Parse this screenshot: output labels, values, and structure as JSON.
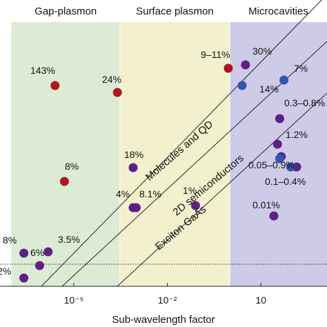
{
  "chart_data": {
    "type": "scatter",
    "xlabel": "Sub-wavelength factor",
    "x_scale": "log",
    "x_ticks": [
      {
        "value": 1e-05,
        "label": "10⁻⁵"
      },
      {
        "value": 0.01,
        "label": "10⁻²"
      },
      {
        "value": 10,
        "label": "10"
      }
    ],
    "regions": [
      {
        "name": "Gap-plasmon",
        "color": "#dcebd3",
        "x_range": [
          1e-07,
          0.0003
        ]
      },
      {
        "name": "Surface plasmon",
        "color": "#f3f1cd",
        "x_range": [
          0.0003,
          1
        ]
      },
      {
        "name": "Microcavities",
        "color": "#cdcbe8",
        "x_range": [
          1,
          2000
        ]
      }
    ],
    "reference_lines": [
      {
        "name": "Molecules and QD"
      },
      {
        "name": "2D semiconductors"
      },
      {
        "name": "Exciton GaAs"
      }
    ],
    "colors": {
      "red": "#b0161b",
      "purple": "#5e1f86",
      "blue": "#2f56b0"
    },
    "points": [
      {
        "x": 2.5e-06,
        "label": "143%",
        "color": "red"
      },
      {
        "x": 0.00025,
        "label": "24%",
        "color": "red"
      },
      {
        "x": 5e-06,
        "label": "8%",
        "color": "red"
      },
      {
        "x": 0.9,
        "label": "9–11%",
        "color": "red"
      },
      {
        "x": 0.0008,
        "label": "18%",
        "color": "purple"
      },
      {
        "x": 0.0008,
        "label": "4%",
        "color": "purple"
      },
      {
        "x": 0.001,
        "label": "8.1%",
        "color": "purple"
      },
      {
        "x": 0.08,
        "label": "1%",
        "color": "purple"
      },
      {
        "x": 2.5e-07,
        "label": "8%",
        "color": "purple"
      },
      {
        "x": 8e-07,
        "label": "6%",
        "color": "purple"
      },
      {
        "x": 1.5e-06,
        "label": "3.5%",
        "color": "purple"
      },
      {
        "x": 2.5e-07,
        "label": "2%",
        "color": "purple"
      },
      {
        "x": 3.2,
        "label": "30%",
        "color": "purple"
      },
      {
        "x": 2.5,
        "label": "14%",
        "color": "blue"
      },
      {
        "x": 55,
        "label": "7%",
        "color": "blue"
      },
      {
        "x": 40,
        "label": "0.3–0.8%",
        "color": "purple"
      },
      {
        "x": 34,
        "label": "1.2%",
        "color": "purple"
      },
      {
        "x": 45,
        "label": "0.05–0.9%",
        "color": "purple"
      },
      {
        "x": 140,
        "label": "0.1–0.4%",
        "color": "purple"
      },
      {
        "x": 90,
        "label": "",
        "color": "blue"
      },
      {
        "x": 40,
        "label": "",
        "color": "blue"
      },
      {
        "x": 26,
        "label": "0.01%",
        "color": "purple"
      }
    ]
  }
}
